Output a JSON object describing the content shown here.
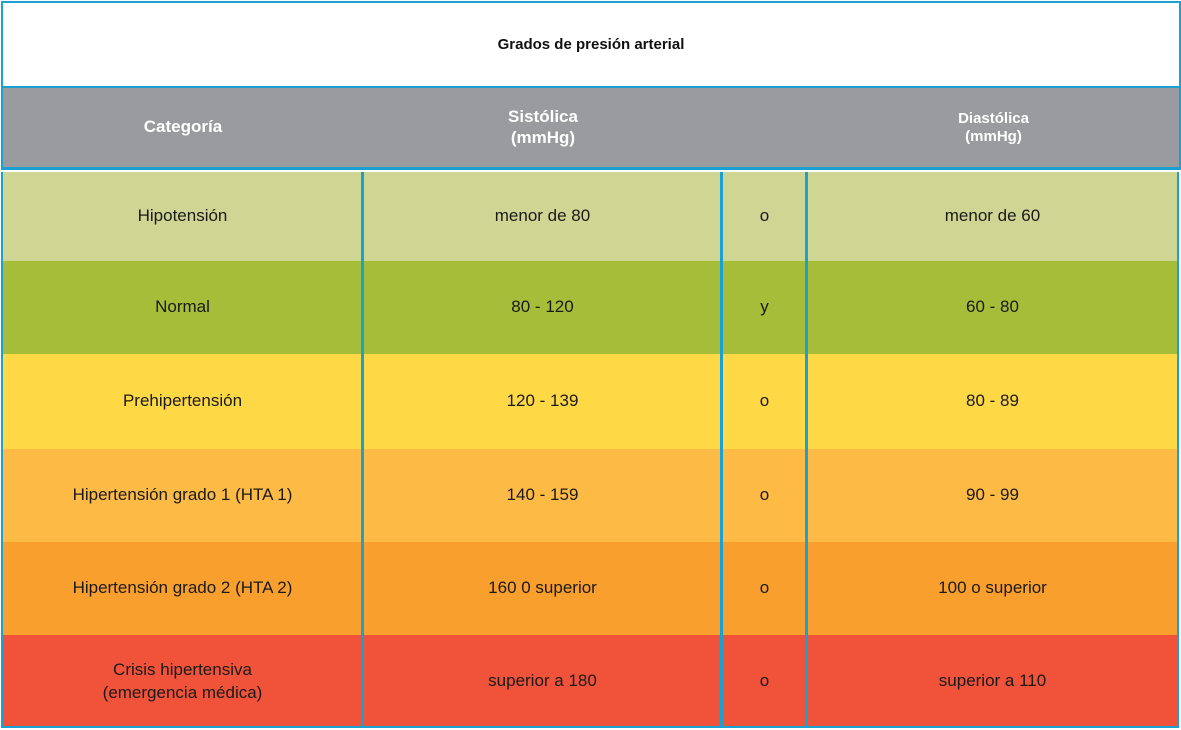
{
  "title": "Grados de presión arterial",
  "headers": {
    "category": "Categoría",
    "systolic": "Sistólica\n(mmHg)",
    "diastolic": "Diastólica\n(mmHg)"
  },
  "rows": [
    {
      "category": "Hipotensión",
      "systolic": "menor de 80",
      "conj": "o",
      "diastolic": "menor de 60",
      "color": "#cfd694"
    },
    {
      "category": "Normal",
      "systolic": "80 - 120",
      "conj": "y",
      "diastolic": "60 - 80",
      "color": "#a5bd39"
    },
    {
      "category": "Prehipertensión",
      "systolic": "120 - 139",
      "conj": "o",
      "diastolic": "80 - 89",
      "color": "#fed945"
    },
    {
      "category": "Hipertensión grado 1 (HTA 1)",
      "systolic": "140 - 159",
      "conj": "o",
      "diastolic": "90 - 99",
      "color": "#fdbb46"
    },
    {
      "category": "Hipertensión grado 2 (HTA 2)",
      "systolic": "160 0 superior",
      "conj": "o",
      "diastolic": "100 o superior",
      "color": "#f99f2e"
    },
    {
      "category": "Crisis hipertensiva\n(emergencia médica)",
      "systolic": "superior a 180",
      "conj": "o",
      "diastolic": "superior a 110",
      "color": "#f0523a"
    }
  ],
  "colors": {
    "border": "#1ba1d1",
    "header_bg": "#9a9b9e"
  }
}
